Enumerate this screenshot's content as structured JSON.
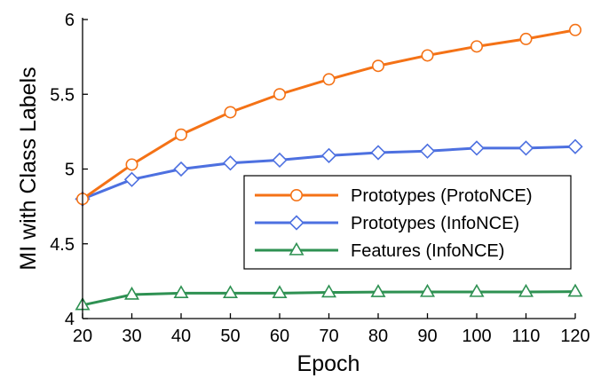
{
  "chart_data": {
    "type": "line",
    "xlabel": "Epoch",
    "ylabel": "MI with Class Labels",
    "x": [
      20,
      30,
      40,
      50,
      60,
      70,
      80,
      90,
      100,
      110,
      120
    ],
    "xlim": [
      20,
      120
    ],
    "ylim": [
      4,
      6
    ],
    "xticks": [
      "20",
      "30",
      "40",
      "50",
      "60",
      "70",
      "80",
      "90",
      "100",
      "110",
      "120"
    ],
    "yticks": [
      "4",
      "4.5",
      "5",
      "5.5",
      "6"
    ],
    "grid": false,
    "legend_position": "center-right",
    "series": [
      {
        "name": "Prototypes (ProtoNCE)",
        "color": "#f47216",
        "marker": "circle",
        "values": [
          4.8,
          5.03,
          5.23,
          5.38,
          5.5,
          5.6,
          5.69,
          5.76,
          5.82,
          5.87,
          5.93
        ]
      },
      {
        "name": "Prototypes (InfoNCE)",
        "color": "#4d70e0",
        "marker": "diamond",
        "values": [
          4.8,
          4.93,
          5.0,
          5.04,
          5.06,
          5.09,
          5.11,
          5.12,
          5.14,
          5.14,
          5.15
        ]
      },
      {
        "name": "Features (InfoNCE)",
        "color": "#2e9152",
        "marker": "triangle",
        "values": [
          4.09,
          4.16,
          4.17,
          4.17,
          4.17,
          4.175,
          4.177,
          4.178,
          4.178,
          4.178,
          4.18
        ]
      }
    ]
  }
}
